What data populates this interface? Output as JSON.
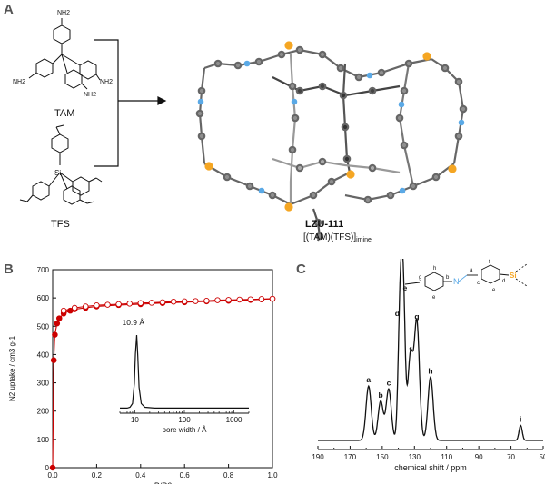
{
  "panels": {
    "a": {
      "letter": "A",
      "tam_label": "TAM",
      "tfs_label": "TFS",
      "nh2": "NH2",
      "product_name": "LZU-111",
      "product_formula_main": "[(TAM)(TFS)]",
      "product_formula_sub": "imine"
    },
    "b": {
      "letter": "B"
    },
    "c": {
      "letter": "C"
    }
  },
  "chart_data": [
    {
      "type": "scatter",
      "panel": "B",
      "xlabel": "P/P0",
      "ylabel": "N2 uptake / cm3 g-1",
      "xlim": [
        0,
        1.0
      ],
      "ylim": [
        0,
        700
      ],
      "xticks": [
        "0.0",
        "0.2",
        "0.4",
        "0.6",
        "0.8",
        "1.0"
      ],
      "yticks": [
        "0",
        "100",
        "200",
        "300",
        "400",
        "500",
        "600",
        "700"
      ],
      "color": "#cc0000",
      "series": [
        {
          "x": [
            0.0,
            0.005,
            0.01,
            0.02,
            0.03,
            0.05,
            0.08,
            0.1,
            0.15,
            0.2,
            0.3,
            0.4,
            0.5,
            0.6,
            0.7,
            0.8,
            0.9,
            0.95,
            1.0
          ],
          "y": [
            0,
            380,
            470,
            510,
            528,
            545,
            555,
            560,
            565,
            570,
            575,
            578,
            582,
            585,
            588,
            590,
            593,
            595,
            597
          ]
        },
        {
          "x": [
            1.0,
            0.95,
            0.9,
            0.85,
            0.8,
            0.75,
            0.7,
            0.65,
            0.6,
            0.55,
            0.5,
            0.45,
            0.4,
            0.35,
            0.3,
            0.25,
            0.2,
            0.15,
            0.1,
            0.05
          ],
          "y": [
            597,
            596,
            595,
            594,
            593,
            592,
            590,
            589,
            588,
            587,
            585,
            583,
            582,
            580,
            578,
            576,
            574,
            570,
            565,
            555
          ]
        }
      ],
      "inset": {
        "type": "line",
        "xlabel": "pore width / Å",
        "xticks": [
          "10",
          "100",
          "1000"
        ],
        "peak_label": "10.9 Å",
        "x": [
          5,
          7,
          8,
          9,
          9.8,
          10.3,
          10.9,
          11.5,
          12.2,
          13.5,
          16,
          25,
          100,
          1000,
          2000
        ],
        "y": [
          0.02,
          0.02,
          0.03,
          0.08,
          0.35,
          0.75,
          1.0,
          0.72,
          0.3,
          0.08,
          0.03,
          0.02,
          0.02,
          0.02,
          0.02
        ]
      }
    },
    {
      "type": "line",
      "panel": "C",
      "xlabel": "chemical shift / ppm",
      "xlim": [
        190,
        50
      ],
      "xticks": [
        "190",
        "170",
        "150",
        "130",
        "110",
        "90",
        "70",
        "50"
      ],
      "peaks": [
        {
          "label": "a",
          "ppm": 158.5,
          "height": 0.36
        },
        {
          "label": "b",
          "ppm": 151,
          "height": 0.26
        },
        {
          "label": "c",
          "ppm": 146,
          "height": 0.34
        },
        {
          "label": "d",
          "ppm": 139,
          "height": 0.8
        },
        {
          "label": "e",
          "ppm": 137,
          "height": 0.97
        },
        {
          "label": "f",
          "ppm": 132.5,
          "height": 0.56
        },
        {
          "label": "g",
          "ppm": 128.5,
          "height": 0.78
        },
        {
          "label": "h",
          "ppm": 120,
          "height": 0.42
        },
        {
          "label": "i",
          "ppm": 64,
          "height": 0.1
        }
      ],
      "structure_labels": [
        "a",
        "b",
        "c",
        "d",
        "e",
        "f",
        "g",
        "h",
        "e",
        "Si",
        "N"
      ]
    }
  ]
}
